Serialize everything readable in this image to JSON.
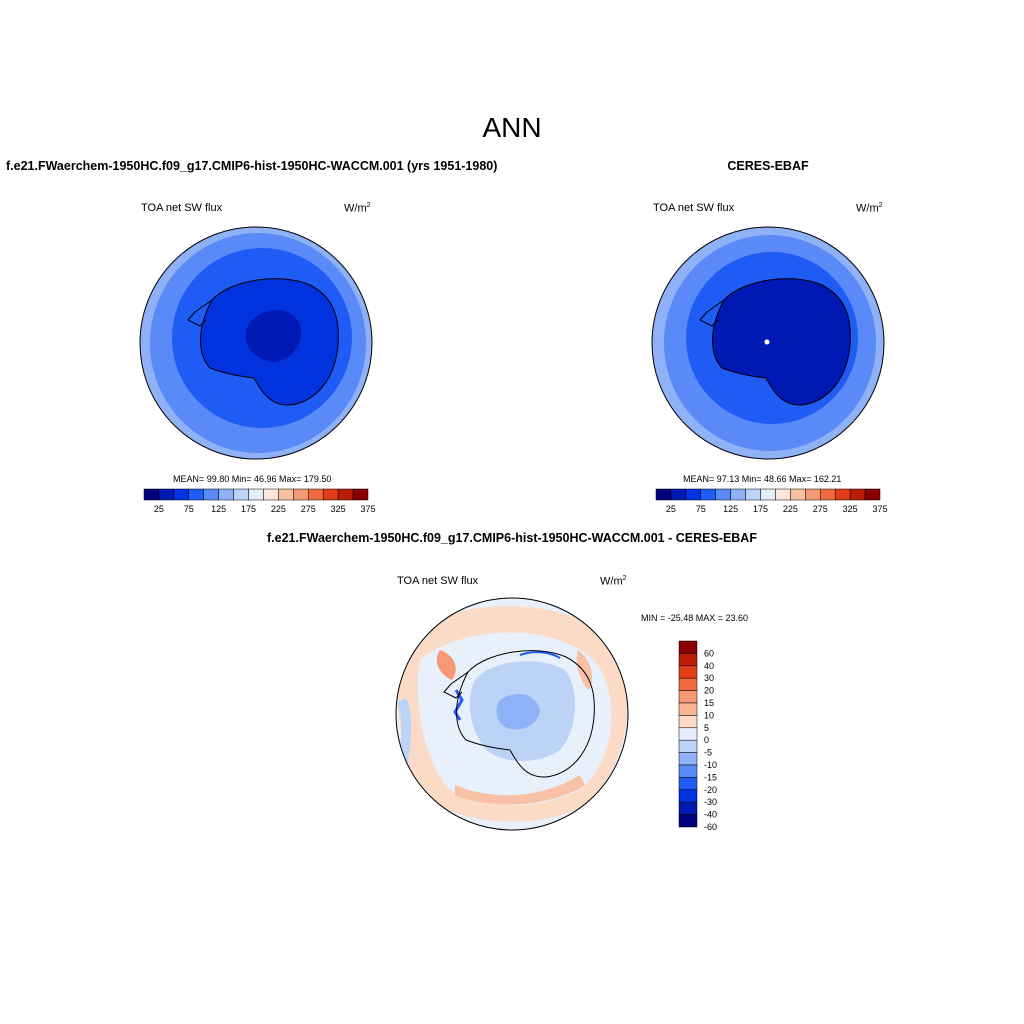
{
  "main_title": "ANN",
  "panels": [
    {
      "title": "f.e21.FWaerchem-1950HC.f09_g17.CMIP6-hist-1950HC-WACCM.001 (yrs 1951-1980)",
      "variable": "TOA net SW flux",
      "units_base": "W/m",
      "units_exp": "2",
      "stats": "MEAN=  99.80  Min=  46.96  Max= 179.50"
    },
    {
      "title": "CERES-EBAF",
      "variable": "TOA net SW flux",
      "units_base": "W/m",
      "units_exp": "2",
      "stats": "MEAN=  97.13  Min=  48.66  Max= 162.21"
    },
    {
      "title": "f.e21.FWaerchem-1950HC.f09_g17.CMIP6-hist-1950HC-WACCM.001 - CERES-EBAF",
      "variable": "TOA net SW flux",
      "units_base": "W/m",
      "units_exp": "2",
      "stats": "MIN = -25.48 MAX =  23.60"
    }
  ],
  "abs_colorbar": {
    "labels": [
      "25",
      "75",
      "125",
      "175",
      "225",
      "275",
      "325",
      "375"
    ],
    "colors": [
      "#00007f",
      "#0018b4",
      "#0033dd",
      "#1f5bf5",
      "#5a8af7",
      "#8fb1f7",
      "#bcd3f8",
      "#e4eefa",
      "#fbe6d8",
      "#f8c1a5",
      "#f59a74",
      "#f06a3e",
      "#e03c15",
      "#bc1c07",
      "#8a0000"
    ]
  },
  "diff_colorbar": {
    "labels": [
      "60",
      "40",
      "30",
      "20",
      "15",
      "10",
      "5",
      "0",
      "-5",
      "-10",
      "-15",
      "-20",
      "-30",
      "-40",
      "-60"
    ],
    "colors": [
      "#8a0000",
      "#bc1c07",
      "#e03c15",
      "#f06a3e",
      "#f59a74",
      "#f8b592",
      "#fbdbc6",
      "#e4eefa",
      "#bcd3f8",
      "#8fb1f7",
      "#5a8af7",
      "#1f5bf5",
      "#0033dd",
      "#0018b4",
      "#00007f"
    ]
  },
  "map_colors": {
    "ocean_far": "#8fb1f7",
    "ocean_mid": "#5a8af7",
    "ocean_near": "#1f5bf5",
    "ice_edge": "#0033dd",
    "ice_interior": "#0018b4",
    "diff_pos_light": "#fbdbc6",
    "diff_pos_mid": "#f8c1a5",
    "diff_pos_strong": "#f59a74",
    "diff_neutral": "#e8f0fb",
    "diff_neg_light": "#bcd3f8",
    "diff_neg_mid": "#8fb1f7",
    "diff_neg_strong": "#1f5bf5"
  }
}
